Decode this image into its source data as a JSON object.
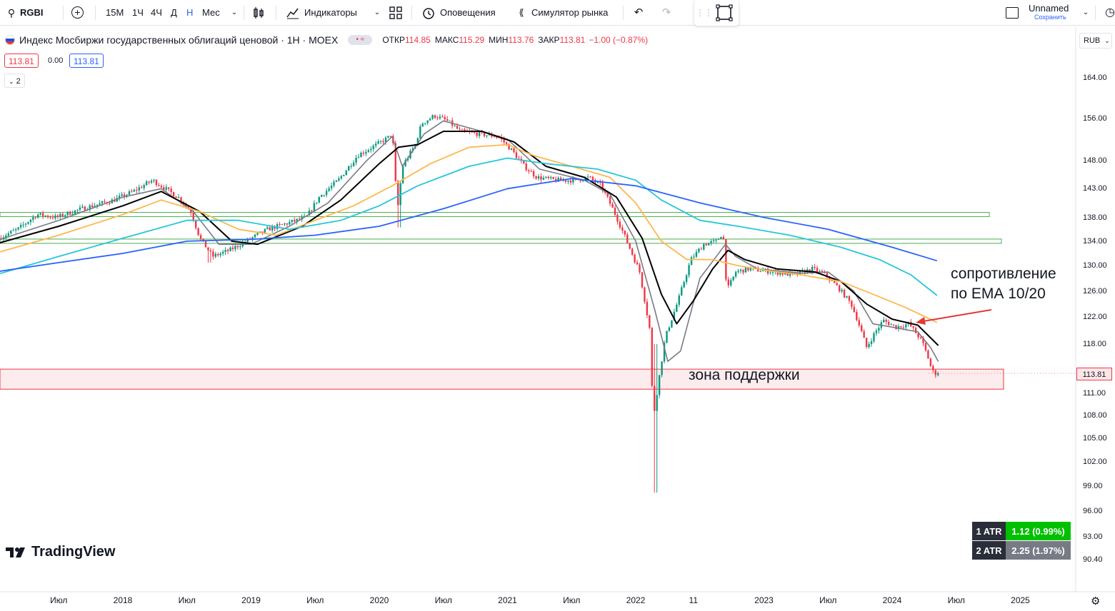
{
  "toolbar": {
    "symbol": "RGBI",
    "intervals": [
      "15М",
      "1Ч",
      "4Ч",
      "Д",
      "Н",
      "Мес"
    ],
    "active_interval": "Н",
    "indicators_label": "Индикаторы",
    "alerts_label": "Оповещения",
    "replay_label": "Симулятор рынка",
    "layout_name": "Unnamed",
    "save_label": "Сохранить"
  },
  "legend": {
    "title": "Индекс Мосбиржи государственных облигаций ценовой · 1Н · MOEX",
    "open_label": "ОТКР",
    "open": "114.85",
    "high_label": "МАКС",
    "high": "115.29",
    "low_label": "МИН",
    "low": "113.76",
    "close_label": "ЗАКР",
    "close": "113.81",
    "change": "−1.00 (−0.87%)",
    "bid": "113.81",
    "spread": "0.00",
    "ask": "113.81",
    "collapse_label": "2"
  },
  "currency": "RUB",
  "annotations": {
    "resistance_line1": "сопротивление",
    "resistance_line2": "по ЕМА 10/20",
    "support_zone": "зона поддержки"
  },
  "atr": [
    {
      "label": "1 ATR",
      "value": "1.12 (0.99%)",
      "color": "#00c000"
    },
    {
      "label": "2 ATR",
      "value": "2.25 (1.97%)",
      "color": "#787b86"
    }
  ],
  "branding": "TradingView",
  "last_price_label": "113.81",
  "colors": {
    "up": "#089981",
    "down": "#f23645",
    "ema10": "#787b86",
    "ema20": "#000000",
    "ema50": "#ffb74d",
    "ema100": "#26c6da",
    "ema200": "#2962ff",
    "support_fill": "#fde7e9",
    "support_border": "#f23645",
    "level": "#4caf50",
    "arrow": "#e53935"
  },
  "chart_data": {
    "type": "candlestick",
    "timeframe": "1W",
    "y_axis_ticks": [
      164,
      156,
      148,
      143,
      138,
      134,
      130,
      126,
      122,
      118,
      114,
      111,
      108,
      105,
      102,
      99,
      96,
      93,
      90.4
    ],
    "y_tick_labels": [
      "164.00",
      "156.00",
      "148.00",
      "143.00",
      "138.00",
      "134.00",
      "130.00",
      "126.00",
      "122.00",
      "118.00",
      "114.00",
      "111.00",
      "108.00",
      "105.00",
      "102.00",
      "99.00",
      "96.00",
      "93.00",
      "90.40"
    ],
    "x_ticks": [
      {
        "label": "Июл",
        "t": 2017.5
      },
      {
        "label": "2018",
        "t": 2018.0
      },
      {
        "label": "Июл",
        "t": 2018.5
      },
      {
        "label": "2019",
        "t": 2019.0
      },
      {
        "label": "Июл",
        "t": 2019.5
      },
      {
        "label": "2020",
        "t": 2020.0
      },
      {
        "label": "Июл",
        "t": 2020.5
      },
      {
        "label": "2021",
        "t": 2021.0
      },
      {
        "label": "Июл",
        "t": 2021.5
      },
      {
        "label": "2022",
        "t": 2022.0
      },
      {
        "label": "11",
        "t": 2022.45
      },
      {
        "label": "2023",
        "t": 2023.0
      },
      {
        "label": "Июл",
        "t": 2023.5
      },
      {
        "label": "2024",
        "t": 2024.0
      },
      {
        "label": "Июл",
        "t": 2024.5
      },
      {
        "label": "2025",
        "t": 2025.0
      }
    ],
    "price_keypoints": [
      [
        2017.05,
        134.5
      ],
      [
        2017.2,
        136
      ],
      [
        2017.35,
        138.5
      ],
      [
        2017.5,
        138
      ],
      [
        2017.7,
        139.5
      ],
      [
        2017.95,
        141
      ],
      [
        2018.1,
        142.5
      ],
      [
        2018.25,
        144.5
      ],
      [
        2018.35,
        143
      ],
      [
        2018.45,
        141.5
      ],
      [
        2018.55,
        139
      ],
      [
        2018.62,
        134.5
      ],
      [
        2018.72,
        131.5
      ],
      [
        2018.85,
        132.5
      ],
      [
        2018.98,
        134
      ],
      [
        2019.15,
        136
      ],
      [
        2019.3,
        137
      ],
      [
        2019.45,
        138
      ],
      [
        2019.55,
        141.5
      ],
      [
        2019.7,
        144.5
      ],
      [
        2019.85,
        149
      ],
      [
        2020.0,
        151
      ],
      [
        2020.1,
        152.5
      ],
      [
        2020.12,
        153.5
      ],
      [
        2020.16,
        139
      ],
      [
        2020.2,
        147
      ],
      [
        2020.3,
        151
      ],
      [
        2020.35,
        155
      ],
      [
        2020.45,
        156.5
      ],
      [
        2020.55,
        155.5
      ],
      [
        2020.65,
        153.5
      ],
      [
        2020.8,
        153
      ],
      [
        2020.95,
        152.5
      ],
      [
        2021.05,
        150
      ],
      [
        2021.15,
        147
      ],
      [
        2021.25,
        145
      ],
      [
        2021.4,
        144.5
      ],
      [
        2021.55,
        144.5
      ],
      [
        2021.65,
        145
      ],
      [
        2021.75,
        143.5
      ],
      [
        2021.85,
        139
      ],
      [
        2021.95,
        134
      ],
      [
        2022.05,
        129
      ],
      [
        2022.13,
        120
      ],
      [
        2022.155,
        107.5
      ],
      [
        2022.2,
        113
      ],
      [
        2022.25,
        119
      ],
      [
        2022.35,
        124.5
      ],
      [
        2022.45,
        131
      ],
      [
        2022.55,
        133.5
      ],
      [
        2022.65,
        134
      ],
      [
        2022.7,
        135.5
      ],
      [
        2022.73,
        126
      ],
      [
        2022.8,
        129
      ],
      [
        2022.9,
        129.5
      ],
      [
        2023.1,
        129
      ],
      [
        2023.25,
        128.5
      ],
      [
        2023.4,
        129.5
      ],
      [
        2023.5,
        128.5
      ],
      [
        2023.6,
        126.5
      ],
      [
        2023.7,
        124
      ],
      [
        2023.75,
        121.5
      ],
      [
        2023.82,
        117.5
      ],
      [
        2023.88,
        119.5
      ],
      [
        2023.95,
        121.5
      ],
      [
        2024.05,
        120.5
      ],
      [
        2024.15,
        121
      ],
      [
        2024.25,
        118.5
      ],
      [
        2024.3,
        116
      ],
      [
        2024.33,
        114.2
      ],
      [
        2024.35,
        113.81
      ]
    ],
    "ema_series": [
      {
        "name": "EMA 10",
        "color": "#787b86",
        "points": [
          [
            2017.0,
            134
          ],
          [
            2017.5,
            137.5
          ],
          [
            2018.0,
            141.5
          ],
          [
            2018.3,
            143
          ],
          [
            2018.55,
            139
          ],
          [
            2018.75,
            133.5
          ],
          [
            2019.0,
            133.5
          ],
          [
            2019.3,
            136.5
          ],
          [
            2019.6,
            140.5
          ],
          [
            2019.9,
            148
          ],
          [
            2020.1,
            152.5
          ],
          [
            2020.18,
            147
          ],
          [
            2020.35,
            153
          ],
          [
            2020.5,
            155.5
          ],
          [
            2020.8,
            153.5
          ],
          [
            2021.0,
            152
          ],
          [
            2021.25,
            146.5
          ],
          [
            2021.6,
            144.5
          ],
          [
            2021.8,
            142
          ],
          [
            2022.0,
            134
          ],
          [
            2022.15,
            123
          ],
          [
            2022.25,
            115.5
          ],
          [
            2022.35,
            117
          ],
          [
            2022.5,
            128
          ],
          [
            2022.7,
            133.5
          ],
          [
            2022.78,
            131.5
          ],
          [
            2022.95,
            129.5
          ],
          [
            2023.3,
            128.8
          ],
          [
            2023.5,
            129
          ],
          [
            2023.7,
            126
          ],
          [
            2023.85,
            121
          ],
          [
            2024.0,
            120.5
          ],
          [
            2024.2,
            119.8
          ],
          [
            2024.3,
            117.5
          ],
          [
            2024.36,
            115.5
          ]
        ]
      },
      {
        "name": "EMA 20",
        "color": "#000000",
        "points": [
          [
            2017.0,
            133.5
          ],
          [
            2017.5,
            136.5
          ],
          [
            2018.0,
            140
          ],
          [
            2018.3,
            142.5
          ],
          [
            2018.6,
            139
          ],
          [
            2018.85,
            134
          ],
          [
            2019.05,
            133.5
          ],
          [
            2019.4,
            136.5
          ],
          [
            2019.7,
            141
          ],
          [
            2020.0,
            147.5
          ],
          [
            2020.15,
            150.5
          ],
          [
            2020.3,
            151
          ],
          [
            2020.5,
            153.5
          ],
          [
            2020.8,
            153.5
          ],
          [
            2021.05,
            151.5
          ],
          [
            2021.3,
            147
          ],
          [
            2021.6,
            145
          ],
          [
            2021.85,
            141.5
          ],
          [
            2022.05,
            134.5
          ],
          [
            2022.2,
            125.5
          ],
          [
            2022.32,
            121
          ],
          [
            2022.45,
            124.5
          ],
          [
            2022.6,
            129.5
          ],
          [
            2022.72,
            132.5
          ],
          [
            2022.85,
            131
          ],
          [
            2023.1,
            129.5
          ],
          [
            2023.4,
            129
          ],
          [
            2023.6,
            127.5
          ],
          [
            2023.8,
            124
          ],
          [
            2024.0,
            121.7
          ],
          [
            2024.2,
            120.8
          ],
          [
            2024.36,
            117.8
          ]
        ]
      },
      {
        "name": "EMA 50",
        "color": "#ffb74d",
        "points": [
          [
            2017.0,
            132
          ],
          [
            2017.5,
            135
          ],
          [
            2018.0,
            138.5
          ],
          [
            2018.3,
            141
          ],
          [
            2018.6,
            139
          ],
          [
            2018.9,
            136
          ],
          [
            2019.2,
            135
          ],
          [
            2019.5,
            137.5
          ],
          [
            2019.8,
            140
          ],
          [
            2020.1,
            143.5
          ],
          [
            2020.4,
            147.5
          ],
          [
            2020.7,
            150.5
          ],
          [
            2021.0,
            151
          ],
          [
            2021.2,
            149
          ],
          [
            2021.5,
            147
          ],
          [
            2021.8,
            145
          ],
          [
            2022.0,
            140.5
          ],
          [
            2022.2,
            134
          ],
          [
            2022.4,
            131
          ],
          [
            2022.6,
            131
          ],
          [
            2022.8,
            130
          ],
          [
            2023.0,
            129.3
          ],
          [
            2023.3,
            128.5
          ],
          [
            2023.6,
            127.5
          ],
          [
            2023.85,
            125.5
          ],
          [
            2024.1,
            123.5
          ],
          [
            2024.35,
            121.2
          ]
        ]
      },
      {
        "name": "EMA 100",
        "color": "#26c6da",
        "points": [
          [
            2017.0,
            128.5
          ],
          [
            2017.5,
            131.5
          ],
          [
            2018.0,
            134.5
          ],
          [
            2018.5,
            137.5
          ],
          [
            2018.9,
            137.5
          ],
          [
            2019.3,
            136
          ],
          [
            2019.7,
            137.5
          ],
          [
            2020.0,
            140
          ],
          [
            2020.3,
            143.5
          ],
          [
            2020.7,
            147
          ],
          [
            2021.0,
            148.5
          ],
          [
            2021.3,
            147.5
          ],
          [
            2021.7,
            146.5
          ],
          [
            2022.0,
            144.5
          ],
          [
            2022.2,
            141
          ],
          [
            2022.5,
            137.5
          ],
          [
            2022.8,
            136.5
          ],
          [
            2023.2,
            135
          ],
          [
            2023.6,
            133
          ],
          [
            2023.9,
            131
          ],
          [
            2024.15,
            128.5
          ],
          [
            2024.35,
            125.3
          ]
        ]
      },
      {
        "name": "EMA 200",
        "color": "#2962ff",
        "points": [
          [
            2017.0,
            129
          ],
          [
            2017.5,
            130.5
          ],
          [
            2018.0,
            132
          ],
          [
            2018.5,
            134
          ],
          [
            2019.0,
            134.3
          ],
          [
            2019.5,
            135
          ],
          [
            2020.0,
            136.5
          ],
          [
            2020.5,
            139.5
          ],
          [
            2021.0,
            143
          ],
          [
            2021.5,
            144.8
          ],
          [
            2022.0,
            143.5
          ],
          [
            2022.5,
            140.5
          ],
          [
            2023.0,
            138
          ],
          [
            2023.5,
            136
          ],
          [
            2024.0,
            133
          ],
          [
            2024.35,
            130.8
          ]
        ]
      }
    ],
    "horizontal_levels": [
      138.5,
      134.0
    ],
    "support_zone": [
      111.6,
      114.4
    ]
  }
}
